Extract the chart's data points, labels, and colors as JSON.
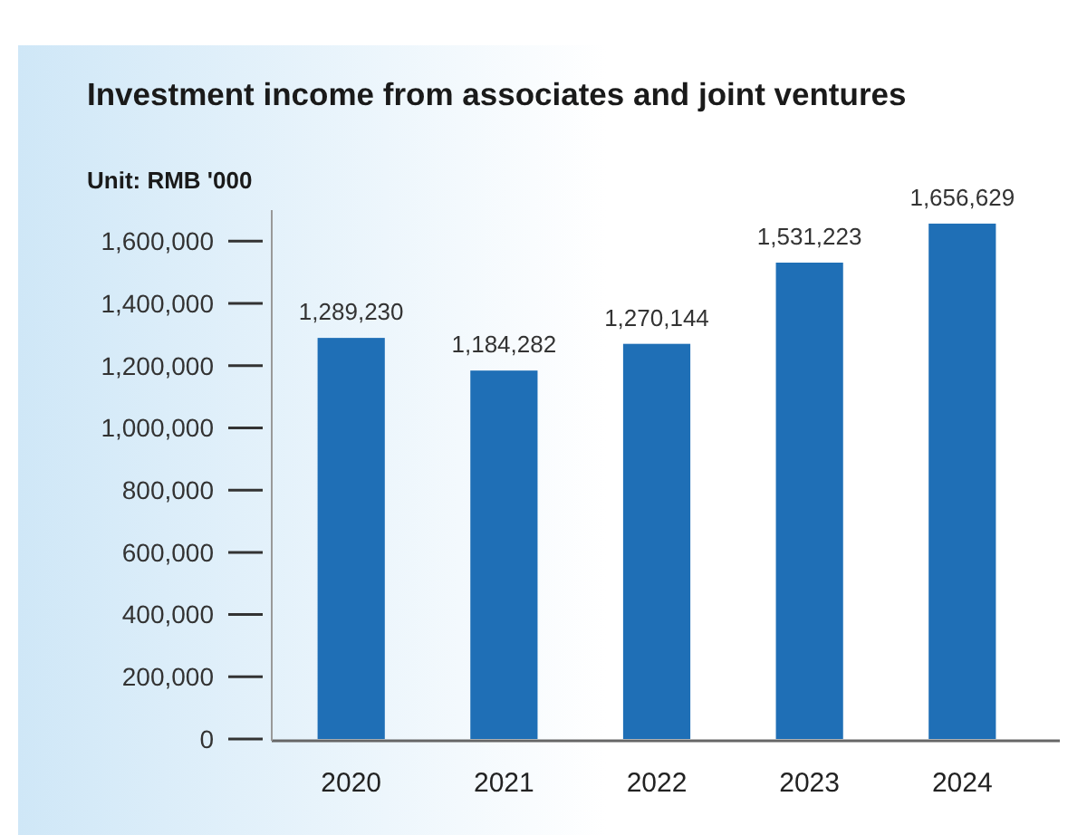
{
  "chart_data": {
    "type": "bar",
    "title": "Investment income from associates and joint ventures",
    "ylabel": "Unit: RMB '000",
    "categories": [
      "2020",
      "2021",
      "2022",
      "2023",
      "2024"
    ],
    "values": [
      1289230,
      1184282,
      1270144,
      1531223,
      1656629
    ],
    "color": "#1f6fb6",
    "value_labels": [
      "1,289,230",
      "1,184,282",
      "1,270,144",
      "1,531,223",
      "1,656,629"
    ],
    "ylim": [
      0,
      1700000
    ],
    "yticks": [
      {
        "value": 0,
        "label": "0"
      },
      {
        "value": 200000,
        "label": "200,000"
      },
      {
        "value": 400000,
        "label": "400,000"
      },
      {
        "value": 600000,
        "label": "600,000"
      },
      {
        "value": 800000,
        "label": "800,000"
      },
      {
        "value": 1000000,
        "label": "1,000,000"
      },
      {
        "value": 1200000,
        "label": "1,200,000"
      },
      {
        "value": 1400000,
        "label": "1,400,000"
      },
      {
        "value": 1600000,
        "label": "1,600,000"
      }
    ],
    "grid": false
  }
}
